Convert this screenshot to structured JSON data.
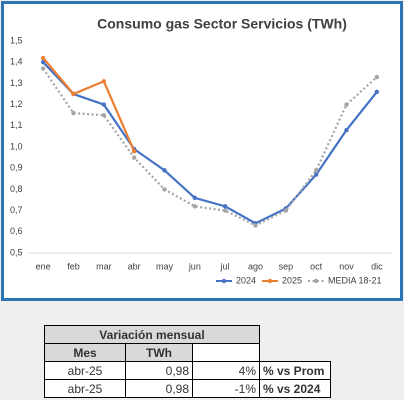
{
  "chart_data": {
    "type": "line",
    "title": "Consumo gas Sector Servicios (TWh)",
    "categories": [
      "ene",
      "feb",
      "mar",
      "abr",
      "may",
      "jun",
      "jul",
      "ago",
      "sep",
      "oct",
      "nov",
      "dic"
    ],
    "series": [
      {
        "name": "2024",
        "color": "#4472c4",
        "line_style": "solid",
        "values": [
          1.4,
          1.25,
          1.2,
          0.99,
          0.89,
          0.76,
          0.72,
          0.64,
          0.71,
          0.87,
          1.08,
          1.26
        ]
      },
      {
        "name": "2025",
        "color": "#ed7d31",
        "line_style": "solid",
        "values": [
          1.42,
          1.25,
          1.31,
          0.98,
          null,
          null,
          null,
          null,
          null,
          null,
          null,
          null
        ]
      },
      {
        "name": "MEDIA 18-21",
        "color": "#a5a5a5",
        "line_style": "dotted",
        "values": [
          1.37,
          1.16,
          1.15,
          0.95,
          0.8,
          0.72,
          0.7,
          0.63,
          0.7,
          0.89,
          1.2,
          1.33
        ]
      }
    ],
    "ylim": [
      0.5,
      1.5
    ],
    "yticks": [
      {
        "value": 0.5,
        "label": "0,5"
      },
      {
        "value": 0.6,
        "label": "0,6"
      },
      {
        "value": 0.7,
        "label": "0,7"
      },
      {
        "value": 0.8,
        "label": "0,8"
      },
      {
        "value": 0.9,
        "label": "0,9"
      },
      {
        "value": 1.0,
        "label": "1,0"
      },
      {
        "value": 1.1,
        "label": "1,1"
      },
      {
        "value": 1.2,
        "label": "1,2"
      },
      {
        "value": 1.3,
        "label": "1,3"
      },
      {
        "value": 1.4,
        "label": "1,4"
      },
      {
        "value": 1.5,
        "label": "1,5"
      }
    ],
    "grid": false,
    "legend": "bottom"
  },
  "table": {
    "title": "Variación mensual",
    "headers": [
      "Mes",
      "TWh"
    ],
    "rows": [
      [
        "abr-25",
        "0,98",
        "4%",
        "% vs Prom"
      ],
      [
        "abr-25",
        "0,98",
        "-1%",
        "% vs 2024"
      ]
    ]
  }
}
